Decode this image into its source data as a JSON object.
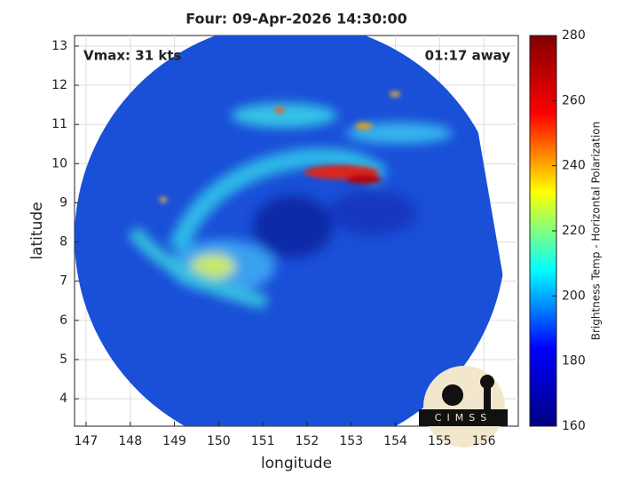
{
  "chart_data": {
    "type": "map",
    "title": "Four: 09-Apr-2026 14:30:00",
    "xlabel": "longitude",
    "ylabel": "latitude",
    "xlim": [
      146.74,
      156.78
    ],
    "xticks": [
      147,
      148,
      149,
      150,
      151,
      152,
      153,
      154,
      155,
      156
    ],
    "ylim": [
      3.3,
      13.27
    ],
    "yticks": [
      4,
      5,
      6,
      7,
      8,
      9,
      10,
      11,
      12,
      13
    ],
    "grid": true,
    "annotations": [
      "Vmax: 31 kts",
      "01:17 away"
    ],
    "colorbar": {
      "label": "Brightness Temp - Horizontal Polarization",
      "colormap": "jet",
      "lim": [
        160,
        280
      ],
      "ticks": [
        160,
        180,
        200,
        220,
        240,
        260,
        280
      ]
    },
    "logo": "CIMSS"
  }
}
